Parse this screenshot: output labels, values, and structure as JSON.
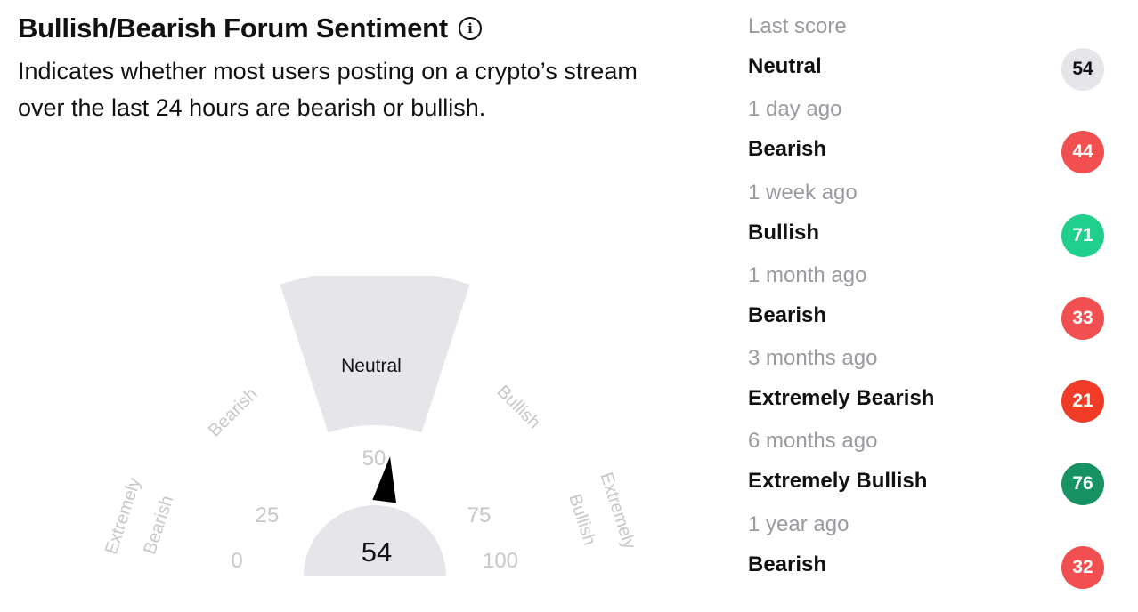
{
  "header": {
    "title": "Bullish/Bearish Forum Sentiment",
    "info_icon": "info-icon",
    "description_line1": "Indicates whether most users posting on a crypto’s stream",
    "description_line2": "over the last 24 hours are bearish or bullish."
  },
  "gauge": {
    "score": "54",
    "score_value": 54,
    "active_label": "Neutral",
    "sector_labels": {
      "extremely_bearish_1": "Extremely",
      "extremely_bearish_2": "Bearish",
      "bearish": "Bearish",
      "bullish": "Bullish",
      "extremely_bullish_1": "Extremely",
      "extremely_bullish_2": "Bullish"
    },
    "ticks": {
      "t0": "0",
      "t25": "25",
      "t50": "50",
      "t75": "75",
      "t100": "100"
    },
    "colors": {
      "active_sector": "#e6e6ea",
      "inactive_text": "#c8c8cc",
      "needle": "#000000"
    }
  },
  "history": {
    "items": [
      {
        "when": "Last score",
        "label": "Neutral",
        "score": "54",
        "color": "#e6e6ea",
        "text_color": "#111111"
      },
      {
        "when": "1 day ago",
        "label": "Bearish",
        "score": "44",
        "color": "#f24f50",
        "text_color": "#ffffff"
      },
      {
        "when": "1 week ago",
        "label": "Bullish",
        "score": "71",
        "color": "#21cf8c",
        "text_color": "#ffffff"
      },
      {
        "when": "1 month ago",
        "label": "Bearish",
        "score": "33",
        "color": "#f24f50",
        "text_color": "#ffffff"
      },
      {
        "when": "3 months ago",
        "label": "Extremely Bearish",
        "score": "21",
        "color": "#f03b26",
        "text_color": "#ffffff"
      },
      {
        "when": "6 months ago",
        "label": "Extremely Bullish",
        "score": "76",
        "color": "#179263",
        "text_color": "#ffffff"
      },
      {
        "when": "1 year ago",
        "label": "Bearish",
        "score": "32",
        "color": "#f24f50",
        "text_color": "#ffffff"
      }
    ]
  }
}
